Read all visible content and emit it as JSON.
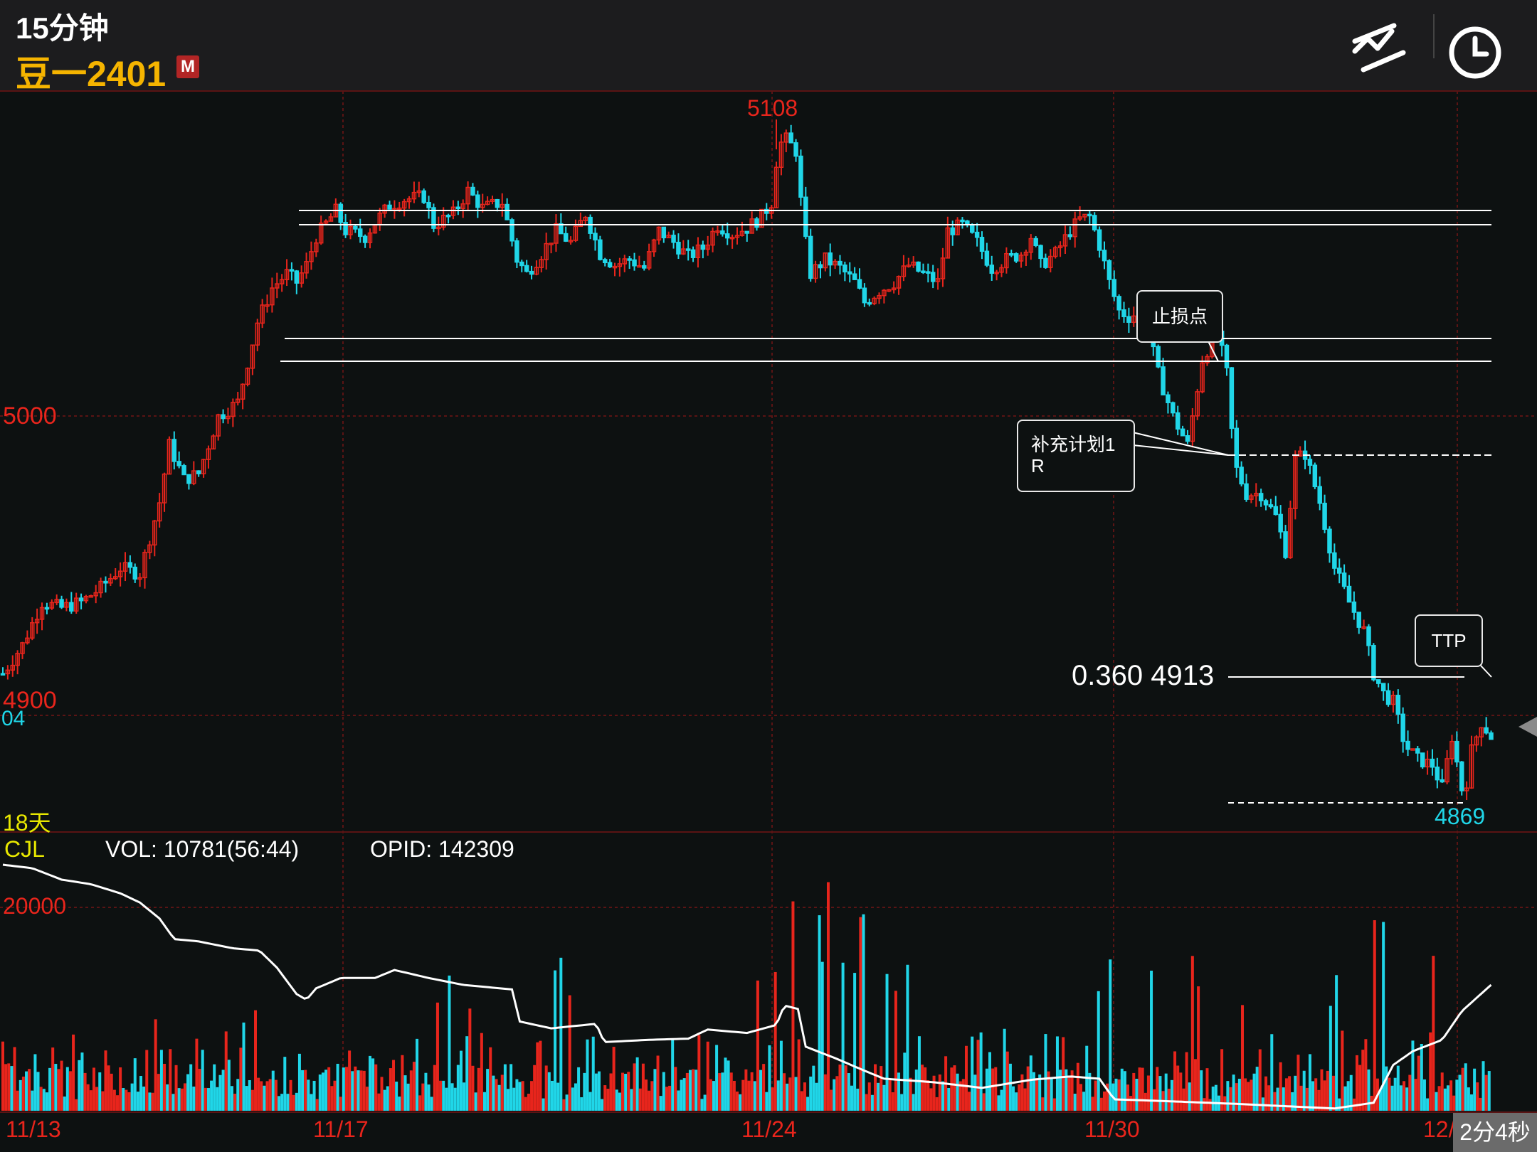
{
  "header": {
    "period": "15分钟",
    "symbol": "豆一2401",
    "badge": "M",
    "draw_tool_icon": "drawing-tools-icon",
    "clock_icon": "clock-icon"
  },
  "price_axis": {
    "high_label": "5000",
    "low_label": "4900",
    "current_tick": "04"
  },
  "extremes": {
    "max": "5108",
    "min": "4869"
  },
  "period_span": "18天",
  "volume_panel": {
    "indicator": "CJL",
    "vol": "VOL: 10781(56:44)",
    "opid": "OPID: 142309",
    "scale_label": "20000"
  },
  "x_axis": {
    "dates": [
      "11/13",
      "11/17",
      "11/24",
      "11/30",
      "12/"
    ]
  },
  "annotations": {
    "stop_loss": "止损点",
    "plan_line1": "补充计划1",
    "plan_line2": "R",
    "ttp": "TTP",
    "fib_label": "0.360 4913"
  },
  "timer": "2分4秒",
  "colors": {
    "up": "#e8251c",
    "down": "#20d6e8",
    "accent": "#f5b400",
    "grid": "#6a1616"
  },
  "chart_data": {
    "type": "candlestick",
    "price_range": [
      4869,
      5108
    ],
    "close_path": [
      [
        0,
        4915
      ],
      [
        20,
        4925
      ],
      [
        40,
        4940
      ],
      [
        60,
        4938
      ],
      [
        80,
        4940
      ],
      [
        100,
        4945
      ],
      [
        120,
        4952
      ],
      [
        140,
        4950
      ],
      [
        160,
        4975
      ],
      [
        170,
        4995
      ],
      [
        185,
        4983
      ],
      [
        200,
        4985
      ],
      [
        220,
        5005
      ],
      [
        240,
        5010
      ],
      [
        260,
        5038
      ],
      [
        275,
        5050
      ],
      [
        290,
        5055
      ],
      [
        300,
        5052
      ],
      [
        310,
        5058
      ],
      [
        320,
        5068
      ],
      [
        340,
        5077
      ],
      [
        350,
        5070
      ],
      [
        370,
        5068
      ],
      [
        380,
        5073
      ],
      [
        395,
        5079
      ],
      [
        410,
        5081
      ],
      [
        430,
        5082
      ],
      [
        440,
        5072
      ],
      [
        460,
        5076
      ],
      [
        475,
        5084
      ],
      [
        490,
        5078
      ],
      [
        510,
        5080
      ],
      [
        525,
        5060
      ],
      [
        535,
        5055
      ],
      [
        550,
        5062
      ],
      [
        565,
        5070
      ],
      [
        580,
        5066
      ],
      [
        595,
        5076
      ],
      [
        610,
        5062
      ],
      [
        625,
        5058
      ],
      [
        640,
        5060
      ],
      [
        655,
        5057
      ],
      [
        670,
        5070
      ],
      [
        685,
        5066
      ],
      [
        700,
        5061
      ],
      [
        715,
        5064
      ],
      [
        730,
        5072
      ],
      [
        745,
        5069
      ],
      [
        760,
        5071
      ],
      [
        775,
        5075
      ],
      [
        785,
        5080
      ],
      [
        792,
        5100
      ],
      [
        800,
        5102
      ],
      [
        810,
        5098
      ],
      [
        818,
        5070
      ],
      [
        825,
        5055
      ],
      [
        840,
        5060
      ],
      [
        855,
        5057
      ],
      [
        870,
        5052
      ],
      [
        880,
        5045
      ],
      [
        895,
        5049
      ],
      [
        910,
        5052
      ],
      [
        925,
        5058
      ],
      [
        940,
        5055
      ],
      [
        955,
        5052
      ],
      [
        965,
        5070
      ],
      [
        980,
        5072
      ],
      [
        995,
        5066
      ],
      [
        1010,
        5057
      ],
      [
        1025,
        5060
      ],
      [
        1040,
        5062
      ],
      [
        1050,
        5068
      ],
      [
        1060,
        5058
      ],
      [
        1075,
        5062
      ],
      [
        1090,
        5070
      ],
      [
        1100,
        5074
      ],
      [
        1110,
        5075
      ],
      [
        1120,
        5065
      ],
      [
        1130,
        5052
      ],
      [
        1140,
        5042
      ],
      [
        1150,
        5040
      ],
      [
        1165,
        5042
      ],
      [
        1180,
        5020
      ],
      [
        1195,
        5005
      ],
      [
        1210,
        4995
      ],
      [
        1225,
        5025
      ],
      [
        1240,
        5035
      ],
      [
        1250,
        5020
      ],
      [
        1258,
        4988
      ],
      [
        1270,
        4978
      ],
      [
        1285,
        4978
      ],
      [
        1300,
        4970
      ],
      [
        1310,
        4958
      ],
      [
        1320,
        4990
      ],
      [
        1330,
        4992
      ],
      [
        1345,
        4975
      ],
      [
        1360,
        4952
      ],
      [
        1375,
        4940
      ],
      [
        1390,
        4930
      ],
      [
        1400,
        4915
      ],
      [
        1410,
        4908
      ],
      [
        1420,
        4905
      ],
      [
        1432,
        4890
      ],
      [
        1445,
        4885
      ],
      [
        1460,
        4883
      ],
      [
        1470,
        4875
      ],
      [
        1480,
        4893
      ],
      [
        1492,
        4871
      ],
      [
        1500,
        4888
      ],
      [
        1510,
        4898
      ],
      [
        1520,
        4893
      ]
    ],
    "volume_max": 22000,
    "volume_profile": [
      [
        0,
        3000
      ],
      [
        80,
        1500
      ],
      [
        136,
        8000
      ],
      [
        175,
        10000
      ],
      [
        262,
        9000
      ],
      [
        350,
        4000
      ],
      [
        435,
        10000
      ],
      [
        525,
        22000
      ],
      [
        612,
        10500
      ],
      [
        700,
        2500
      ],
      [
        787,
        19500
      ],
      [
        818,
        22000
      ],
      [
        874,
        18000
      ],
      [
        962,
        10000
      ],
      [
        1050,
        7000
      ],
      [
        1137,
        20500
      ],
      [
        1176,
        13500
      ],
      [
        1220,
        13800
      ],
      [
        1310,
        14000
      ],
      [
        1398,
        18500
      ],
      [
        1484,
        13500
      ],
      [
        1520,
        4000
      ]
    ],
    "ma_profile": [
      [
        0,
        21500
      ],
      [
        30,
        21200
      ],
      [
        60,
        20200
      ],
      [
        90,
        19800
      ],
      [
        120,
        19000
      ],
      [
        140,
        18200
      ],
      [
        160,
        16800
      ],
      [
        175,
        15000
      ],
      [
        200,
        14800
      ],
      [
        235,
        14200
      ],
      [
        262,
        14000
      ],
      [
        280,
        12500
      ],
      [
        300,
        10200
      ],
      [
        310,
        9700
      ],
      [
        320,
        10700
      ],
      [
        345,
        11600
      ],
      [
        380,
        11600
      ],
      [
        400,
        12300
      ],
      [
        435,
        11600
      ],
      [
        470,
        11000
      ],
      [
        520,
        10600
      ],
      [
        528,
        7800
      ],
      [
        560,
        7200
      ],
      [
        606,
        7600
      ],
      [
        614,
        6000
      ],
      [
        660,
        6200
      ],
      [
        700,
        6300
      ],
      [
        720,
        7100
      ],
      [
        760,
        6800
      ],
      [
        790,
        7500
      ],
      [
        798,
        9200
      ],
      [
        812,
        8900
      ],
      [
        820,
        5600
      ],
      [
        850,
        4600
      ],
      [
        880,
        3500
      ],
      [
        900,
        2800
      ],
      [
        950,
        2500
      ],
      [
        1000,
        2000
      ],
      [
        1050,
        2700
      ],
      [
        1090,
        3000
      ],
      [
        1120,
        2800
      ],
      [
        1135,
        1000
      ],
      [
        1200,
        800
      ],
      [
        1260,
        600
      ],
      [
        1310,
        400
      ],
      [
        1360,
        200
      ],
      [
        1400,
        700
      ],
      [
        1420,
        4000
      ],
      [
        1440,
        5200
      ],
      [
        1470,
        6200
      ],
      [
        1490,
        8700
      ],
      [
        1520,
        11000
      ]
    ]
  }
}
